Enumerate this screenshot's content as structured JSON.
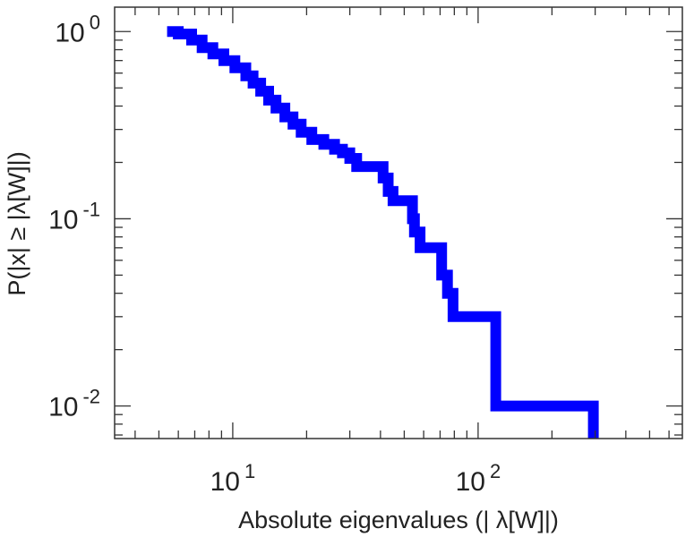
{
  "chart_data": {
    "type": "line",
    "title": "",
    "xlabel": "Absolute eigenvalues (|    λ[W]|)",
    "ylabel": "P(|x|  ≥ |λ[W]|)",
    "xscale": "log",
    "yscale": "log",
    "xlim": [
      3.3,
      680
    ],
    "ylim": [
      0.0067,
      1.35
    ],
    "grid": false,
    "legend": "none",
    "x_ticks": [
      {
        "value": 10,
        "base": "10",
        "exp": "1"
      },
      {
        "value": 100,
        "base": "10",
        "exp": "2"
      }
    ],
    "y_ticks": [
      {
        "value": 1,
        "base": "10",
        "exp": "0"
      },
      {
        "value": 0.1,
        "base": "10",
        "exp": "-1"
      },
      {
        "value": 0.01,
        "base": "10",
        "exp": "-2"
      }
    ],
    "series": [
      {
        "color": "#0000ff",
        "step": true,
        "points": [
          [
            5.4,
            1.0
          ],
          [
            6.0,
            0.97
          ],
          [
            6.8,
            0.9
          ],
          [
            7.5,
            0.82
          ],
          [
            8.3,
            0.76
          ],
          [
            9.2,
            0.7
          ],
          [
            10.2,
            0.64
          ],
          [
            11.3,
            0.58
          ],
          [
            12.1,
            0.53
          ],
          [
            13.0,
            0.48
          ],
          [
            14.0,
            0.43
          ],
          [
            15.0,
            0.39
          ],
          [
            16.3,
            0.35
          ],
          [
            17.6,
            0.32
          ],
          [
            19.0,
            0.29
          ],
          [
            21.0,
            0.265
          ],
          [
            23.5,
            0.25
          ],
          [
            26.0,
            0.235
          ],
          [
            28.0,
            0.225
          ],
          [
            30.0,
            0.21
          ],
          [
            32.0,
            0.19
          ],
          [
            40.0,
            0.19
          ],
          [
            41.0,
            0.165
          ],
          [
            43.0,
            0.14
          ],
          [
            45.0,
            0.125
          ],
          [
            52.0,
            0.125
          ],
          [
            54.0,
            0.1
          ],
          [
            55.0,
            0.085
          ],
          [
            58.0,
            0.07
          ],
          [
            68.0,
            0.07
          ],
          [
            71.0,
            0.05
          ],
          [
            75.0,
            0.04
          ],
          [
            79.0,
            0.03
          ],
          [
            118.0,
            0.03
          ],
          [
            118.0,
            0.01
          ],
          [
            295.0,
            0.01
          ],
          [
            295.0,
            0.0067
          ]
        ]
      }
    ]
  }
}
